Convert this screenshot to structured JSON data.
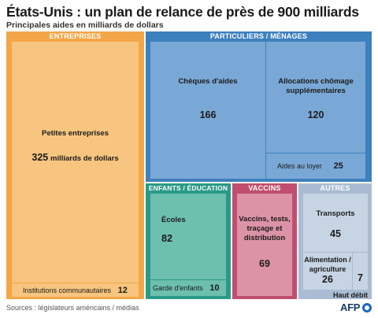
{
  "title": "États-Unis : un plan de relance de près de 900 milliards",
  "subtitle": "Principales aides en milliards de dollars",
  "source": "Sources : législateurs américains / médias",
  "logo": "AFP",
  "colors": {
    "entreprises": "#f3a647",
    "entreprises_cell": "#f7c57f",
    "particuliers": "#3d80be",
    "particuliers_cell": "#7aa8d6",
    "enfants": "#2a9a87",
    "enfants_cell": "#6dbfae",
    "vaccins": "#c14e6e",
    "vaccins_cell": "#dc93a6",
    "autres": "#a9bcd3",
    "autres_cell": "#c7d4e4"
  },
  "chart_data": {
    "type": "treemap",
    "title": "États-Unis : un plan de relance de près de 900 milliards",
    "subtitle": "Principales aides en milliards de dollars",
    "unit": "milliards de dollars",
    "groups": [
      {
        "name": "ENTREPRISES",
        "items": [
          {
            "label": "Petites entreprises",
            "value": 325,
            "value_text": "325",
            "unit_text": "milliards de dollars"
          },
          {
            "label": "Institutions communautaires",
            "value": 12,
            "value_text": "12"
          }
        ]
      },
      {
        "name": "PARTICULIERS / MÉNAGES",
        "items": [
          {
            "label": "Chèques d'aides",
            "value": 166,
            "value_text": "166"
          },
          {
            "label": "Allocations chômage supplémentaires",
            "value": 120,
            "value_text": "120"
          },
          {
            "label": "Aides au loyer",
            "value": 25,
            "value_text": "25"
          }
        ]
      },
      {
        "name": "ENFANTS / ÉDUCATION",
        "items": [
          {
            "label": "Écoles",
            "value": 82,
            "value_text": "82"
          },
          {
            "label": "Garde d'enfants",
            "value": 10,
            "value_text": "10"
          }
        ]
      },
      {
        "name": "VACCINS",
        "items": [
          {
            "label": "Vaccins, tests, traçage et distribution",
            "value": 69,
            "value_text": "69"
          }
        ]
      },
      {
        "name": "AUTRES",
        "items": [
          {
            "label": "Transports",
            "value": 45,
            "value_text": "45"
          },
          {
            "label": "Alimentation / agriculture",
            "value": 26,
            "value_text": "26"
          },
          {
            "label": "Haut débit",
            "value": 7,
            "value_text": "7"
          }
        ]
      }
    ]
  }
}
